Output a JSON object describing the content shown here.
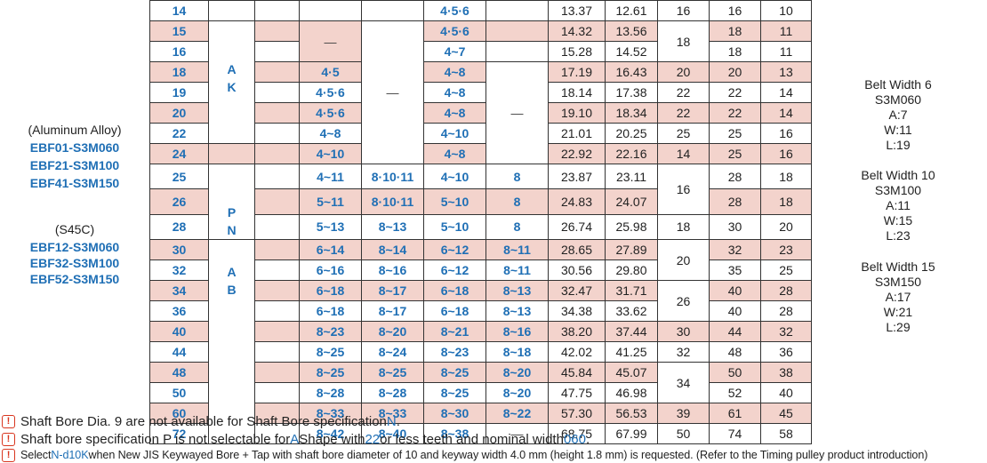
{
  "left_labels": {
    "aluminum_title": "(Aluminum Alloy)",
    "aluminum_models": [
      "EBF01-S3M060",
      "EBF21-S3M100",
      "EBF41-S3M150"
    ],
    "steel_title": "(S45C)",
    "steel_models": [
      "EBF12-S3M060",
      "EBF32-S3M100",
      "EBF52-S3M150"
    ]
  },
  "right_labels": [
    {
      "title": "Belt Width 6",
      "model": "S3M060",
      "a": "A:7",
      "w": "W:11",
      "l": "L:19"
    },
    {
      "title": "Belt Width 10",
      "model": "S3M100",
      "a": "A:11",
      "w": "W:15",
      "l": "L:23"
    },
    {
      "title": "Belt Width 15",
      "model": "S3M150",
      "a": "A:17",
      "w": "W:21",
      "l": "L:29"
    }
  ],
  "table": {
    "colors": {
      "stripe": "#f3d3cc",
      "accent": "#1f6fb5",
      "warning": "#d9361f"
    },
    "shape_letters": {
      "ak": [
        "A",
        "K"
      ],
      "pn": [
        "P",
        "N"
      ],
      "ab": [
        "A",
        "B"
      ]
    },
    "dash": "—",
    "rows": [
      {
        "teeth": "14",
        "c1": "",
        "c2": "",
        "c3": "4·5·6",
        "c4": "",
        "d1": "13.37",
        "d2": "12.61",
        "f": "16",
        "g": "16",
        "h": "10"
      },
      {
        "teeth": "15",
        "c1": "",
        "c2": "",
        "c3": "4·5·6",
        "c4": "",
        "d1": "14.32",
        "d2": "13.56",
        "f": "18",
        "g": "18",
        "h": "11"
      },
      {
        "teeth": "16",
        "c1": "",
        "c2": "",
        "c3": "4~7",
        "c4": "",
        "d1": "15.28",
        "d2": "14.52",
        "f": "",
        "g": "18",
        "h": "11"
      },
      {
        "teeth": "18",
        "c1": "4·5",
        "c2": "",
        "c3": "4~8",
        "c4": "",
        "d1": "17.19",
        "d2": "16.43",
        "f": "20",
        "g": "20",
        "h": "13"
      },
      {
        "teeth": "19",
        "c1": "4·5·6",
        "c2": "",
        "c3": "4~8",
        "c4": "",
        "d1": "18.14",
        "d2": "17.38",
        "f": "22",
        "g": "22",
        "h": "14"
      },
      {
        "teeth": "20",
        "c1": "4·5·6",
        "c2": "",
        "c3": "4~8",
        "c4": "",
        "d1": "19.10",
        "d2": "18.34",
        "f": "22",
        "g": "22",
        "h": "14"
      },
      {
        "teeth": "22",
        "c1": "4~8",
        "c2": "",
        "c3": "4~10",
        "c4": "",
        "d1": "21.01",
        "d2": "20.25",
        "f": "25",
        "g": "25",
        "h": "16"
      },
      {
        "teeth": "24",
        "c1": "4~10",
        "c2": "",
        "c3": "4~8",
        "c4": "",
        "d1": "22.92",
        "d2": "22.16",
        "f": "14",
        "g": "25",
        "h": "16"
      },
      {
        "teeth": "25",
        "c1": "4~11",
        "c2": "8·10·11",
        "c3": "4~10",
        "c4": "8",
        "d1": "23.87",
        "d2": "23.11",
        "f": "16",
        "g": "28",
        "h": "18"
      },
      {
        "teeth": "26",
        "c1": "5~11",
        "c2": "8·10·11",
        "c3": "5~10",
        "c4": "8",
        "d1": "24.83",
        "d2": "24.07",
        "f": "",
        "g": "28",
        "h": "18"
      },
      {
        "teeth": "28",
        "c1": "5~13",
        "c2": "8~13",
        "c3": "5~10",
        "c4": "8",
        "d1": "26.74",
        "d2": "25.98",
        "f": "18",
        "g": "30",
        "h": "20"
      },
      {
        "teeth": "30",
        "c1": "6~14",
        "c2": "8~14",
        "c3": "6~12",
        "c4": "8~11",
        "d1": "28.65",
        "d2": "27.89",
        "f": "20",
        "g": "32",
        "h": "23"
      },
      {
        "teeth": "32",
        "c1": "6~16",
        "c2": "8~16",
        "c3": "6~12",
        "c4": "8~11",
        "d1": "30.56",
        "d2": "29.80",
        "f": "",
        "g": "35",
        "h": "25"
      },
      {
        "teeth": "34",
        "c1": "6~18",
        "c2": "8~17",
        "c3": "6~18",
        "c4": "8~13",
        "d1": "32.47",
        "d2": "31.71",
        "f": "26",
        "g": "40",
        "h": "28"
      },
      {
        "teeth": "36",
        "c1": "6~18",
        "c2": "8~17",
        "c3": "6~18",
        "c4": "8~13",
        "d1": "34.38",
        "d2": "33.62",
        "f": "",
        "g": "40",
        "h": "28"
      },
      {
        "teeth": "40",
        "c1": "8~23",
        "c2": "8~20",
        "c3": "8~21",
        "c4": "8~16",
        "d1": "38.20",
        "d2": "37.44",
        "f": "30",
        "g": "44",
        "h": "32"
      },
      {
        "teeth": "44",
        "c1": "8~25",
        "c2": "8~24",
        "c3": "8~23",
        "c4": "8~18",
        "d1": "42.02",
        "d2": "41.25",
        "f": "32",
        "g": "48",
        "h": "36"
      },
      {
        "teeth": "48",
        "c1": "8~25",
        "c2": "8~25",
        "c3": "8~25",
        "c4": "8~20",
        "d1": "45.84",
        "d2": "45.07",
        "f": "34",
        "g": "50",
        "h": "38"
      },
      {
        "teeth": "50",
        "c1": "8~28",
        "c2": "8~28",
        "c3": "8~25",
        "c4": "8~20",
        "d1": "47.75",
        "d2": "46.98",
        "f": "",
        "g": "52",
        "h": "40"
      },
      {
        "teeth": "60",
        "c1": "8~33",
        "c2": "8~33",
        "c3": "8~30",
        "c4": "8~22",
        "d1": "57.30",
        "d2": "56.53",
        "f": "39",
        "g": "61",
        "h": "45"
      },
      {
        "teeth": "72",
        "c1": "8~42",
        "c2": "8~40",
        "c3": "8~38",
        "c4": "—",
        "d1": "68.75",
        "d2": "67.99",
        "f": "50",
        "g": "74",
        "h": "58"
      }
    ]
  },
  "notes": {
    "note1": {
      "pre": "Shaft Bore Dia. 9 are not available for Shaft Bore specification ",
      "hl": "N",
      "post": "."
    },
    "note2": {
      "pre": "Shaft bore specification P is not selectable for ",
      "hl1": "A",
      "mid1": " Shape with ",
      "hl2": "22",
      "mid2": " or less teeth and nominal width ",
      "hl3": "060",
      "post": "."
    },
    "note3": {
      "pre": "Select ",
      "hl": "N-d10K",
      "post": " when New JIS Keywayed Bore + Tap with shaft bore diameter of 10 and keyway width 4.0 mm (height 1.8 mm) is requested. (Refer to the Timing pulley product introduction)"
    },
    "icon": "!"
  }
}
